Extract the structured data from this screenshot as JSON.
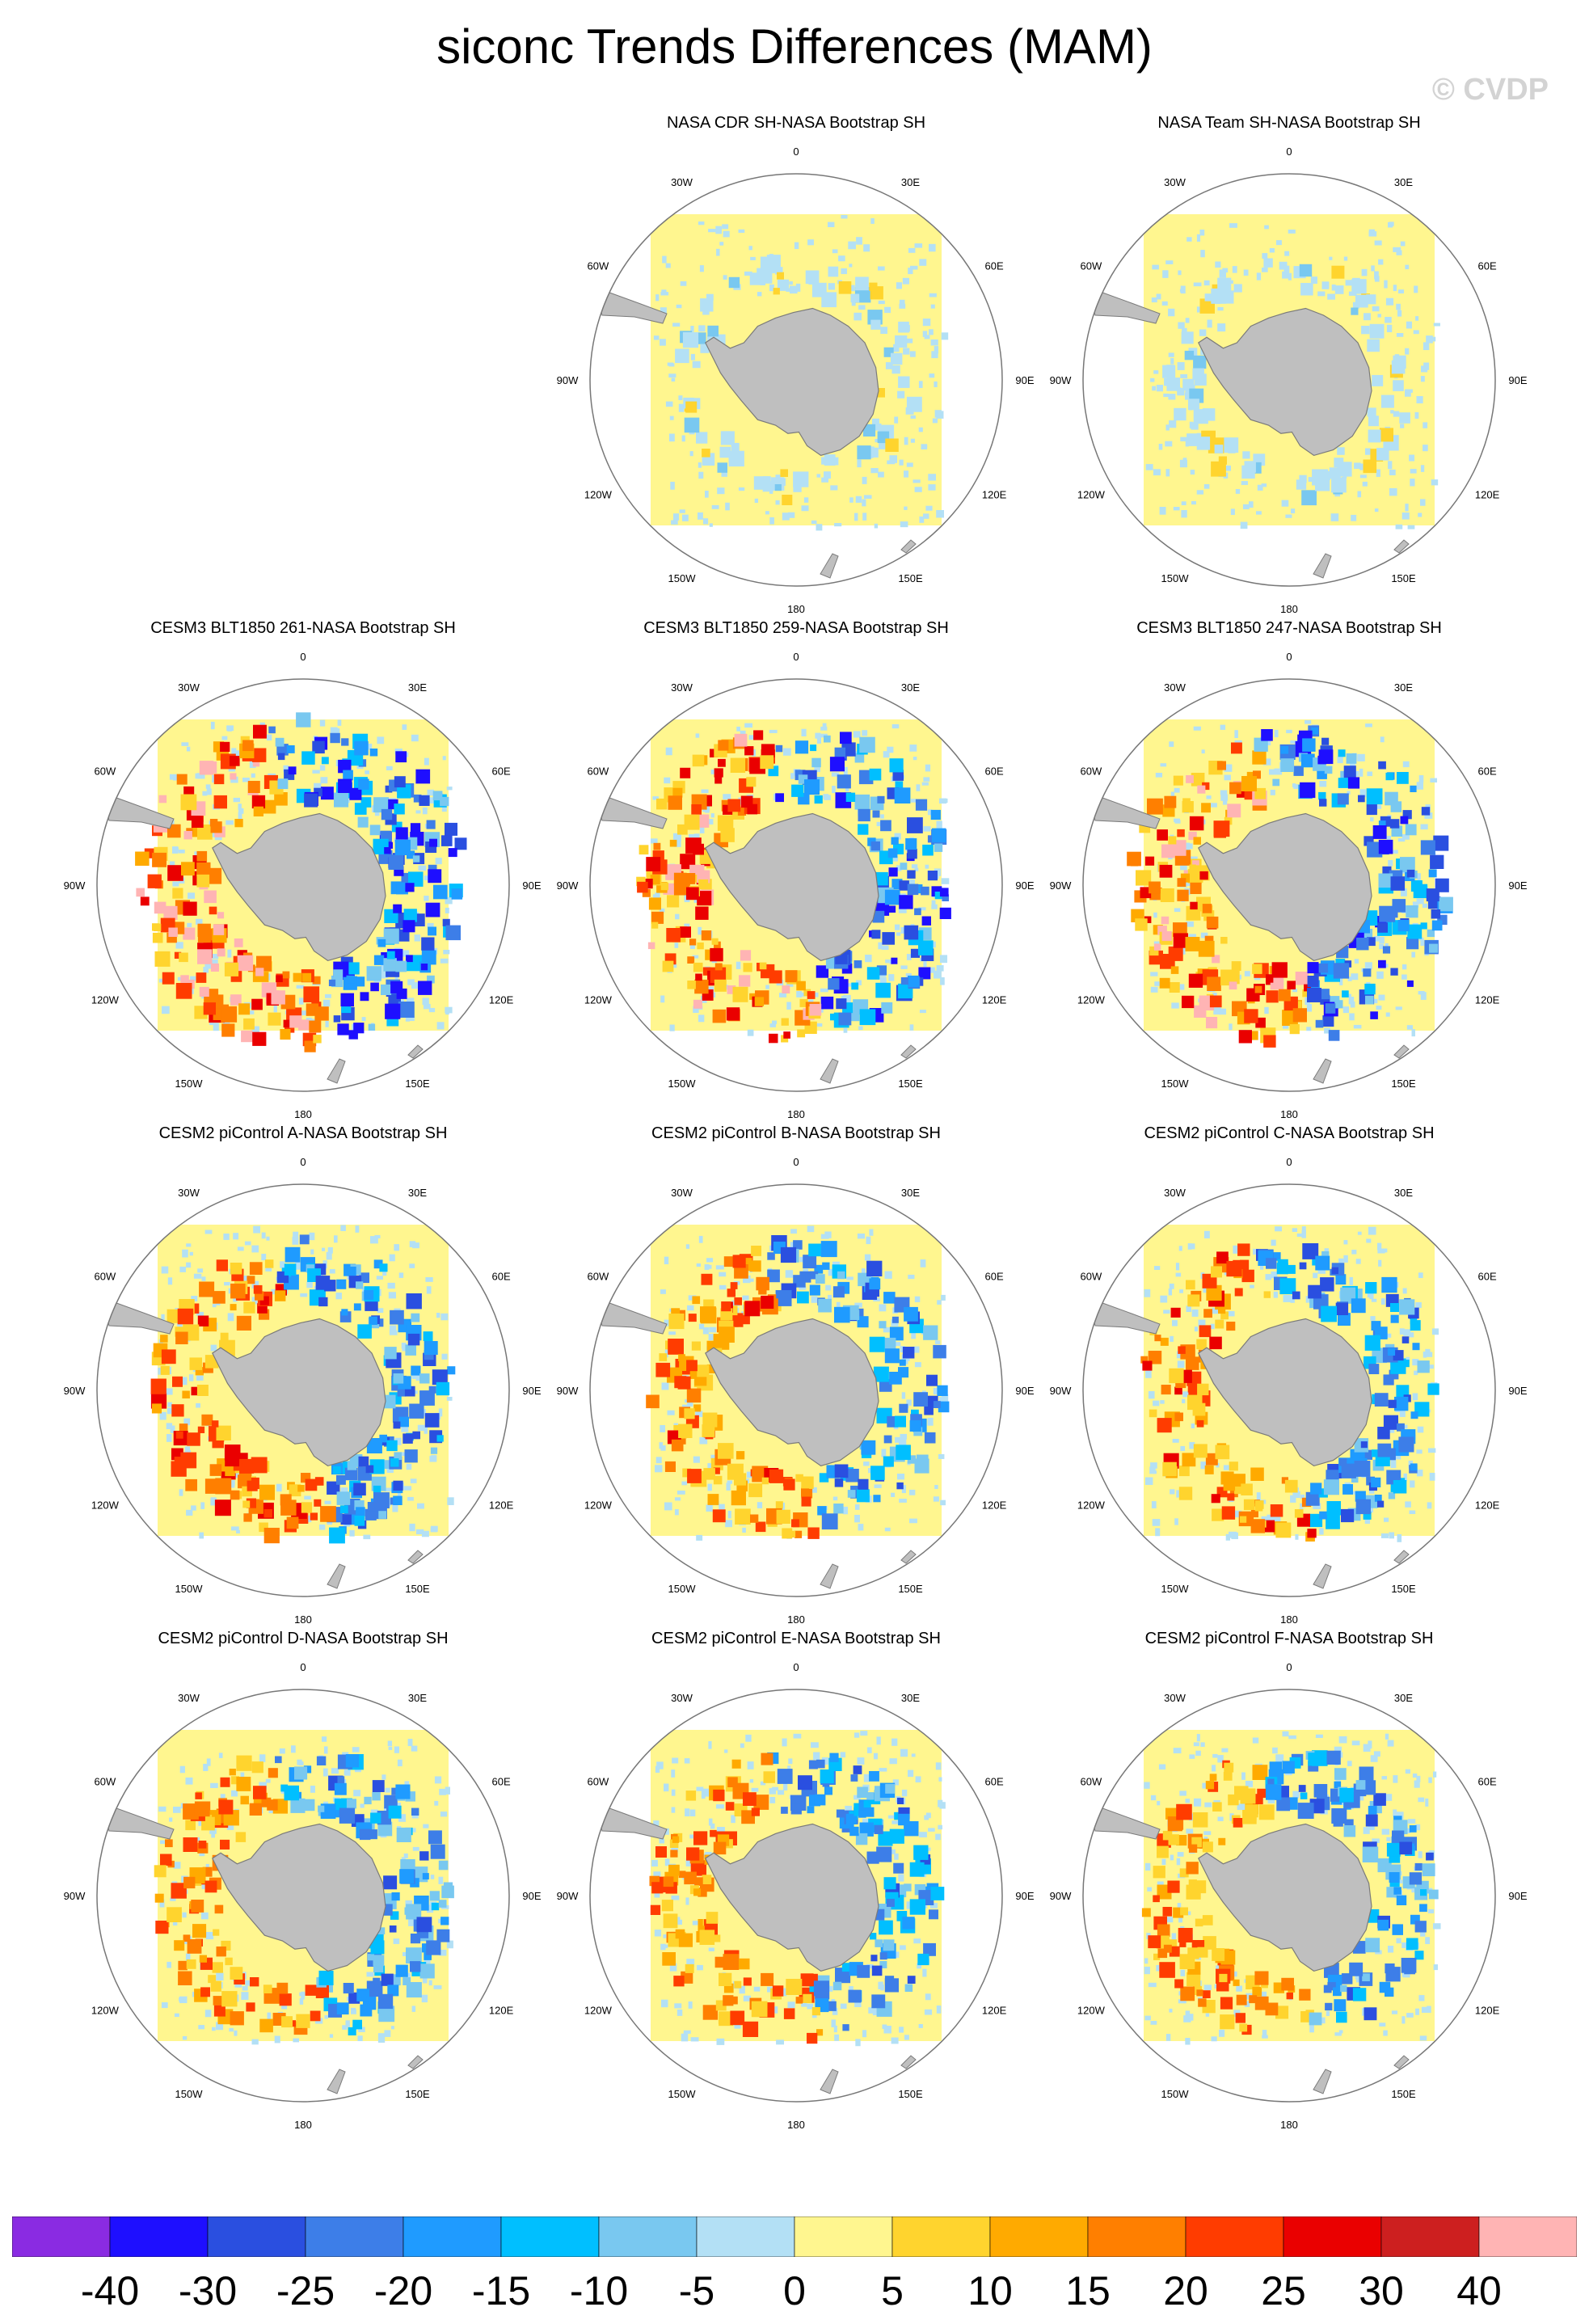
{
  "title": "siconc Trends Differences (MAM)",
  "watermark": "© CVDP",
  "colors": {
    "land": "#bfbfbf",
    "coast": "#808080",
    "background_field": "#fff68f",
    "grid_circle": "#777777"
  },
  "chart_data": {
    "type": "polar-map-panels",
    "variable": "siconc",
    "season": "MAM",
    "longitude_labels": [
      "0",
      "30E",
      "60E",
      "90E",
      "120E",
      "150E",
      "180",
      "150W",
      "120W",
      "90W",
      "60W",
      "30W"
    ],
    "panels": [
      {
        "title": "NASA CDR SH-NASA Bootstrap SH",
        "pattern": "weak",
        "strength": 0.08
      },
      {
        "title": "NASA Team SH-NASA Bootstrap SH",
        "pattern": "weak",
        "strength": 0.12
      },
      {
        "title": "CESM3 BLT1850 261-NASA Bootstrap SH",
        "pattern": "strong-ross",
        "strength": 1.0
      },
      {
        "title": "CESM3 BLT1850 259-NASA Bootstrap SH",
        "pattern": "strong-ross",
        "strength": 0.85
      },
      {
        "title": "CESM3 BLT1850 247-NASA Bootstrap SH",
        "pattern": "strong-ross",
        "strength": 0.85
      },
      {
        "title": "CESM2 piControl A-NASA Bootstrap SH",
        "pattern": "moderate",
        "strength": 0.7
      },
      {
        "title": "CESM2 piControl B-NASA Bootstrap SH",
        "pattern": "moderate",
        "strength": 0.65
      },
      {
        "title": "CESM2 piControl C-NASA Bootstrap SH",
        "pattern": "moderate",
        "strength": 0.65
      },
      {
        "title": "CESM2 piControl D-NASA Bootstrap SH",
        "pattern": "moderate",
        "strength": 0.6
      },
      {
        "title": "CESM2 piControl E-NASA Bootstrap SH",
        "pattern": "moderate",
        "strength": 0.6
      },
      {
        "title": "CESM2 piControl F-NASA Bootstrap SH",
        "pattern": "moderate",
        "strength": 0.6
      }
    ],
    "colorbar": {
      "levels": [
        "-40",
        "-30",
        "-25",
        "-20",
        "-15",
        "-10",
        "-5",
        "0",
        "5",
        "10",
        "15",
        "20",
        "25",
        "30",
        "40"
      ],
      "colors": [
        "#8a2be2",
        "#1e0fff",
        "#2a4fe0",
        "#3d7ee8",
        "#1f9bff",
        "#00bfff",
        "#79c8f0",
        "#b3e0f5",
        "#fff68f",
        "#ffd42e",
        "#ffaa00",
        "#ff7f00",
        "#ff3c00",
        "#ea0000",
        "#cd1f1f",
        "#ffb4b4"
      ]
    }
  }
}
